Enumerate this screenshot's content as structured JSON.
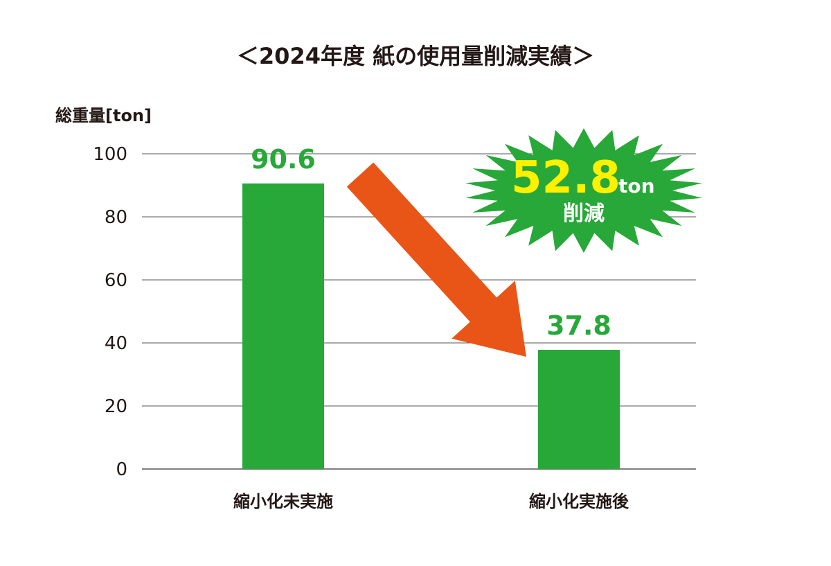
{
  "colors": {
    "bar": "#27a838",
    "value_label": "#27a838",
    "arrow": "#e95517",
    "burst_fill": "#27a838",
    "burst_number": "#fff100",
    "burst_text": "#ffffff",
    "grid": "#555555",
    "text": "#231815"
  },
  "chart_data": {
    "type": "bar",
    "title": "＜2024年度 紙の使用量削減実績＞",
    "ylabel": "総重量[ton]",
    "xlabel": "",
    "ylim": [
      0,
      100
    ],
    "yticks": [
      0,
      20,
      40,
      60,
      80,
      100
    ],
    "grid": true,
    "categories": [
      "縮小化未実施",
      "縮小化実施後"
    ],
    "values": [
      90.6,
      37.8
    ],
    "value_labels": [
      "90.6",
      "37.8"
    ],
    "annotation": {
      "shape": "starburst",
      "number": "52.8",
      "unit": "ton",
      "text": "削減",
      "arrow": "downward from first bar to second bar"
    }
  }
}
